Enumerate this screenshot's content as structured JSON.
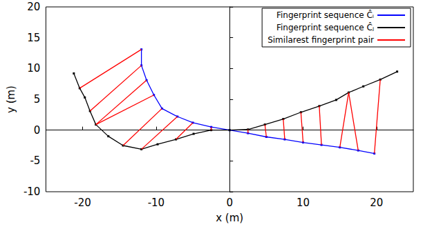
{
  "chart_data": {
    "type": "line",
    "x_label": "x (m)",
    "y_label": "y (m)",
    "xlim": [
      -25,
      25
    ],
    "xticks": [
      -20,
      -10,
      0,
      10,
      20
    ],
    "ylim": [
      -10,
      20
    ],
    "yticks": [
      -10,
      -5,
      0,
      5,
      10,
      15,
      20
    ],
    "grid": false,
    "legend": "top-right",
    "series": [
      {
        "name": "Fingerprint sequence Ĉᵢ",
        "color": "#0000ff",
        "marker": "square",
        "points": [
          [
            -12,
            13.1
          ],
          [
            -12,
            10.5
          ],
          [
            -11.3,
            8.1
          ],
          [
            -10.3,
            5.7
          ],
          [
            -9.2,
            3.5
          ],
          [
            -7.1,
            2.2
          ],
          [
            -5,
            1.2
          ],
          [
            -2.5,
            0.5
          ],
          [
            0,
            0
          ],
          [
            2.5,
            -0.5
          ],
          [
            5,
            -1.1
          ],
          [
            7.5,
            -1.5
          ],
          [
            10,
            -2
          ],
          [
            12.5,
            -2.4
          ],
          [
            15,
            -2.8
          ],
          [
            17.5,
            -3.3
          ],
          [
            19.7,
            -3.8
          ]
        ]
      },
      {
        "name": "Fingerprint sequence Ĉⱼ",
        "color": "#000000",
        "marker": "cross",
        "points": [
          [
            -21.2,
            9.2
          ],
          [
            -20.4,
            6.8
          ],
          [
            -19.7,
            5.3
          ],
          [
            -19,
            3.1
          ],
          [
            -18.2,
            0.9
          ],
          [
            -16.5,
            -1
          ],
          [
            -14.5,
            -2.5
          ],
          [
            -12,
            -3.1
          ],
          [
            -9.8,
            -2.3
          ],
          [
            -7.3,
            -1.5
          ],
          [
            -4.9,
            -0.6
          ],
          [
            -2.5,
            0
          ],
          [
            0,
            0
          ],
          [
            2.5,
            0.1
          ],
          [
            4.8,
            0.9
          ],
          [
            7.3,
            1.8
          ],
          [
            9.7,
            2.9
          ],
          [
            12.2,
            3.9
          ],
          [
            14.5,
            4.9
          ],
          [
            16.2,
            6.1
          ],
          [
            18.2,
            7.1
          ],
          [
            20.5,
            8.2
          ],
          [
            22.8,
            9.5
          ]
        ]
      },
      {
        "name": "Similarest fingerprint pair",
        "color": "#ff0000",
        "type": "segments",
        "segments": [
          [
            [
              -12,
              13.1
            ],
            [
              -20.4,
              6.8
            ]
          ],
          [
            [
              -12,
              10.5
            ],
            [
              -19,
              3.1
            ]
          ],
          [
            [
              -11.3,
              8.1
            ],
            [
              -18.2,
              0.9
            ]
          ],
          [
            [
              -10.3,
              5.7
            ],
            [
              -18.2,
              0.9
            ]
          ],
          [
            [
              -9.2,
              3.5
            ],
            [
              -14.5,
              -2.5
            ]
          ],
          [
            [
              -7.1,
              2.2
            ],
            [
              -12,
              -3.1
            ]
          ],
          [
            [
              -5,
              1.2
            ],
            [
              -7.3,
              -1.5
            ]
          ],
          [
            [
              -2.5,
              0.5
            ],
            [
              -2.5,
              0
            ]
          ],
          [
            [
              0,
              0
            ],
            [
              0,
              0
            ]
          ],
          [
            [
              2.5,
              -0.5
            ],
            [
              2.5,
              0.1
            ]
          ],
          [
            [
              5,
              -1.1
            ],
            [
              4.8,
              0.9
            ]
          ],
          [
            [
              7.5,
              -1.5
            ],
            [
              7.3,
              1.8
            ]
          ],
          [
            [
              10,
              -2
            ],
            [
              9.7,
              2.9
            ]
          ],
          [
            [
              12.5,
              -2.4
            ],
            [
              12.2,
              3.9
            ]
          ],
          [
            [
              15,
              -2.8
            ],
            [
              16.2,
              6.1
            ]
          ],
          [
            [
              17.5,
              -3.3
            ],
            [
              16.2,
              6.1
            ]
          ],
          [
            [
              19.7,
              -3.8
            ],
            [
              20.5,
              8.2
            ]
          ]
        ]
      }
    ]
  }
}
